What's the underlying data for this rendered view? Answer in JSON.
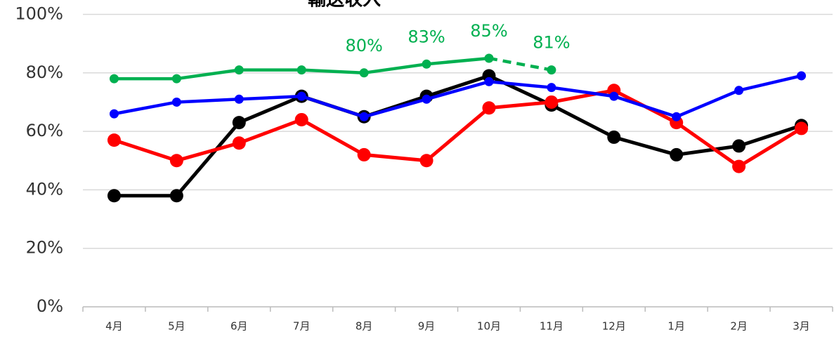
{
  "chart_data": {
    "type": "line",
    "title": "輸送収入",
    "categories": [
      "4月",
      "5月",
      "6月",
      "7月",
      "8月",
      "9月",
      "10月",
      "11月",
      "12月",
      "1月",
      "2月",
      "3月"
    ],
    "ylim": [
      0,
      100
    ],
    "yticks": [
      {
        "value": 0,
        "label": "0%"
      },
      {
        "value": 20,
        "label": "20%"
      },
      {
        "value": 40,
        "label": "40%"
      },
      {
        "value": 60,
        "label": "60%"
      },
      {
        "value": 80,
        "label": "80%"
      },
      {
        "value": 100,
        "label": "100%"
      }
    ],
    "grid": true,
    "series": [
      {
        "color": "#000000",
        "marker": "large",
        "values": [
          38,
          38,
          63,
          72,
          65,
          72,
          79,
          69,
          58,
          52,
          55,
          62
        ]
      },
      {
        "color": "#ff0000",
        "marker": "large",
        "values": [
          57,
          50,
          56,
          64,
          52,
          50,
          68,
          70,
          74,
          63,
          48,
          61
        ]
      },
      {
        "color": "#0000ff",
        "marker": "small",
        "values": [
          66,
          70,
          71,
          72,
          65,
          71,
          77,
          75,
          72,
          65,
          74,
          79
        ]
      },
      {
        "color": "#00b050",
        "marker": "small",
        "last_segment": "dashed",
        "values": [
          78,
          78,
          81,
          81,
          80,
          83,
          85,
          81,
          null,
          null,
          null,
          null
        ],
        "value_labels": [
          null,
          null,
          null,
          null,
          "80%",
          "83%",
          "85%",
          "81%",
          null,
          null,
          null,
          null
        ]
      }
    ]
  }
}
